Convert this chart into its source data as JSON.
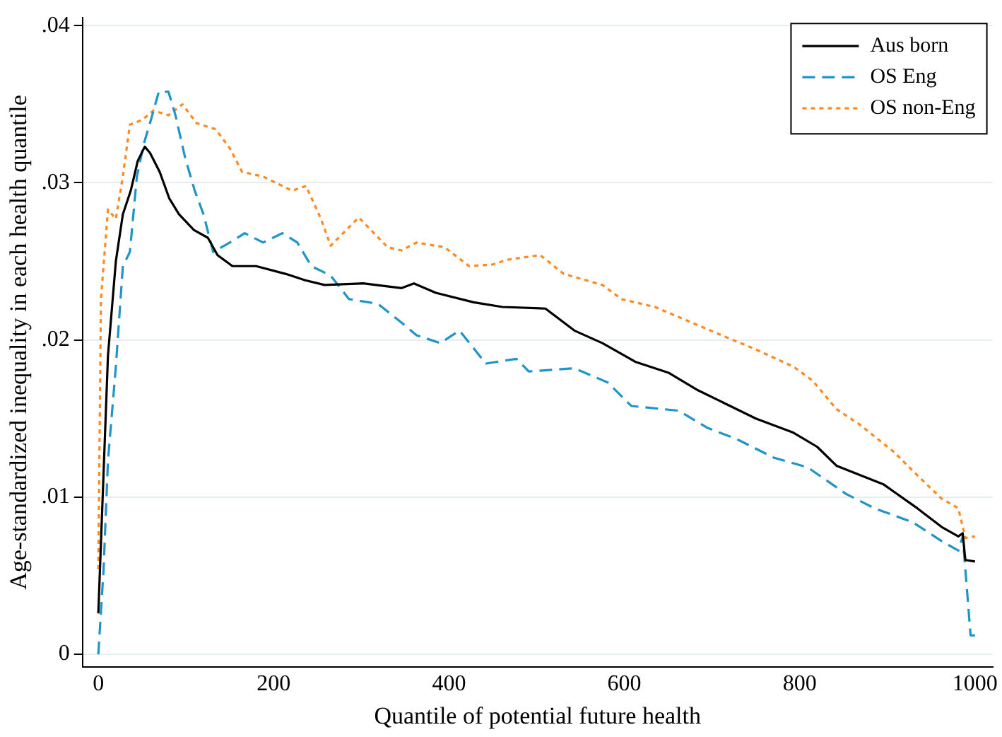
{
  "chart_data": {
    "type": "line",
    "xlabel": "Quantile of potential future health",
    "ylabel": "Age-standardized inequality in each health quantile",
    "xlim": [
      -18,
      1020
    ],
    "ylim": [
      -0.0008,
      0.0405
    ],
    "xticks": [
      0,
      200,
      400,
      600,
      800,
      1000
    ],
    "yticks": [
      {
        "value": 0,
        "label": "0"
      },
      {
        "value": 0.01,
        "label": ".01"
      },
      {
        "value": 0.02,
        "label": ".02"
      },
      {
        "value": 0.03,
        "label": ".03"
      },
      {
        "value": 0.04,
        "label": ".04"
      }
    ],
    "grid": "y",
    "legend": "top right",
    "marker": "none",
    "series": [
      {
        "name": "Aus born",
        "color": "#000000",
        "line_style": "solid",
        "x": [
          0,
          11,
          20,
          28,
          37,
          45,
          53,
          59,
          70,
          81,
          92,
          109,
          125,
          136,
          153,
          180,
          214,
          236,
          258,
          302,
          346,
          360,
          385,
          428,
          461,
          510,
          543,
          575,
          613,
          651,
          684,
          717,
          750,
          793,
          820,
          842,
          896,
          934,
          962,
          981,
          986,
          989,
          1000
        ],
        "values": [
          0.0026,
          0.019,
          0.025,
          0.028,
          0.0295,
          0.0314,
          0.0323,
          0.0319,
          0.0307,
          0.029,
          0.028,
          0.027,
          0.0265,
          0.0254,
          0.0247,
          0.0247,
          0.0242,
          0.0238,
          0.0235,
          0.0236,
          0.0233,
          0.0236,
          0.023,
          0.0224,
          0.0221,
          0.022,
          0.0206,
          0.0198,
          0.0186,
          0.0179,
          0.0168,
          0.0159,
          0.015,
          0.0141,
          0.0132,
          0.012,
          0.0108,
          0.0093,
          0.0081,
          0.0075,
          0.0077,
          0.006,
          0.0059
        ]
      },
      {
        "name": "OS Eng",
        "color": "#1f94c6",
        "line_style": "dashed",
        "x": [
          0,
          6,
          11,
          20,
          28,
          36,
          44,
          52,
          60,
          69,
          80,
          88,
          99,
          110,
          120,
          131,
          150,
          167,
          188,
          210,
          227,
          243,
          265,
          286,
          319,
          346,
          363,
          390,
          412,
          442,
          477,
          491,
          543,
          581,
          608,
          662,
          695,
          728,
          771,
          809,
          853,
          885,
          929,
          962,
          981,
          986,
          995,
          1000
        ],
        "values": [
          0,
          0.0054,
          0.0123,
          0.0183,
          0.0247,
          0.0256,
          0.0304,
          0.0325,
          0.034,
          0.0358,
          0.0358,
          0.0343,
          0.0316,
          0.0295,
          0.028,
          0.0256,
          0.0262,
          0.0268,
          0.0262,
          0.0268,
          0.0262,
          0.0247,
          0.0241,
          0.0226,
          0.0223,
          0.0211,
          0.0203,
          0.0198,
          0.0206,
          0.0185,
          0.0188,
          0.018,
          0.0182,
          0.0173,
          0.0158,
          0.0155,
          0.0144,
          0.0137,
          0.0125,
          0.0119,
          0.0102,
          0.0093,
          0.0084,
          0.0072,
          0.0066,
          0.0075,
          0.0012,
          0.0012
        ]
      },
      {
        "name": "OS non-Eng",
        "color": "#ff8a1f",
        "line_style": "dotted",
        "x": [
          0,
          3,
          11,
          20,
          28,
          36,
          50,
          63,
          80,
          96,
          112,
          134,
          150,
          164,
          188,
          221,
          237,
          254,
          265,
          297,
          330,
          346,
          363,
          395,
          423,
          450,
          466,
          504,
          531,
          575,
          597,
          635,
          673,
          711,
          750,
          793,
          815,
          842,
          869,
          907,
          934,
          962,
          981,
          989,
          1000
        ],
        "values": [
          0.0054,
          0.0226,
          0.0283,
          0.0277,
          0.0304,
          0.0337,
          0.034,
          0.0346,
          0.0343,
          0.035,
          0.0338,
          0.0334,
          0.0322,
          0.0307,
          0.0304,
          0.0295,
          0.0298,
          0.0277,
          0.026,
          0.0278,
          0.0259,
          0.0257,
          0.0262,
          0.0259,
          0.0247,
          0.0248,
          0.0251,
          0.0254,
          0.0242,
          0.0235,
          0.0226,
          0.0221,
          0.0212,
          0.0203,
          0.0194,
          0.0183,
          0.0174,
          0.0156,
          0.0146,
          0.0129,
          0.0114,
          0.0099,
          0.0093,
          0.0074,
          0.0075
        ]
      }
    ]
  }
}
